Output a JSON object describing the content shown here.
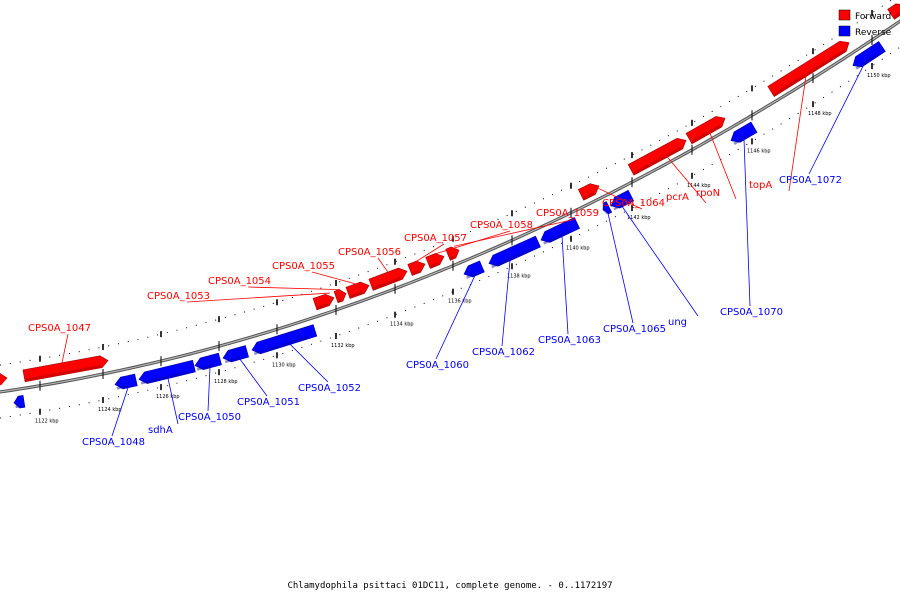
{
  "legend": {
    "items": [
      {
        "label": "Forward",
        "color": "#ff0000"
      },
      {
        "label": "Reverse",
        "color": "#0000ff"
      }
    ]
  },
  "title": "Chlamydophila psittaci 01DC11, complete genome. - 0..1172197",
  "colors": {
    "forward": "#ff0000",
    "forward_dark": "#a00000",
    "reverse": "#0000ff",
    "reverse_dark": "#0000a0",
    "backbone": "#888888"
  },
  "ticks": [
    "1122 kbp",
    "1124 kbp",
    "1126 kbp",
    "1128 kbp",
    "1130 kbp",
    "1132 kbp",
    "1134 kbp",
    "1136 kbp",
    "1138 kbp",
    "1140 kbp",
    "1142 kbp",
    "1144 kbp",
    "1146 kbp",
    "1148 kbp",
    "1150 kbp"
  ],
  "forward_genes": [
    "CPS0A_1047",
    "CPS0A_1053",
    "CPS0A_1054",
    "CPS0A_1055",
    "CPS0A_1056",
    "CPS0A_1057",
    "CPS0A_1058",
    "CPS0A_1059",
    "CPS0A_1064",
    "pcrA",
    "rpoN",
    "topA"
  ],
  "reverse_genes": [
    "CPS0A_1048",
    "sdhA",
    "CPS0A_1050",
    "CPS0A_1051",
    "CPS0A_1052",
    "CPS0A_1060",
    "CPS0A_1062",
    "CPS0A_1063",
    "CPS0A_1065",
    "ung",
    "CPS0A_1070",
    "CPS0A_1072"
  ]
}
